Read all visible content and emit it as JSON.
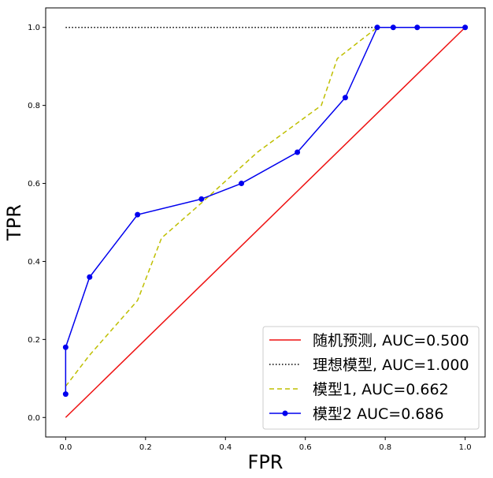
{
  "chart_data": {
    "type": "line",
    "xlabel": "FPR",
    "ylabel": "TPR",
    "xlim": [
      -0.05,
      1.05
    ],
    "ylim": [
      -0.05,
      1.05
    ],
    "xticks": [
      0.0,
      0.2,
      0.4,
      0.6,
      0.8,
      1.0
    ],
    "yticks": [
      0.0,
      0.2,
      0.4,
      0.6,
      0.8,
      1.0
    ],
    "tick_labels_x": [
      "0.0",
      "0.2",
      "0.4",
      "0.6",
      "0.8",
      "1.0"
    ],
    "tick_labels_y": [
      "0.0",
      "0.2",
      "0.4",
      "0.6",
      "0.8",
      "1.0"
    ],
    "grid": false,
    "legend_position": "lower-right",
    "series": [
      {
        "name": "随机预测, AUC=0.500",
        "color": "#ee1111",
        "style": "solid",
        "markers": false,
        "x": [
          0.0,
          1.0
        ],
        "y": [
          0.0,
          1.0
        ]
      },
      {
        "name": "理想模型, AUC=1.000",
        "color": "#000000",
        "style": "dotted",
        "markers": false,
        "x": [
          0.0,
          1.0
        ],
        "y": [
          1.0,
          1.0
        ]
      },
      {
        "name": "模型1, AUC=0.662",
        "color": "#bfbf00",
        "style": "dashed",
        "markers": false,
        "x": [
          0.0,
          0.06,
          0.18,
          0.24,
          0.34,
          0.48,
          0.64,
          0.68,
          0.78,
          0.82,
          0.88,
          1.0
        ],
        "y": [
          0.08,
          0.16,
          0.3,
          0.46,
          0.55,
          0.68,
          0.8,
          0.92,
          1.0,
          1.0,
          1.0,
          1.0
        ]
      },
      {
        "name": "模型2 AUC=0.686",
        "color": "#0000ee",
        "style": "solid",
        "markers": true,
        "x": [
          0.0,
          0.0,
          0.06,
          0.18,
          0.34,
          0.44,
          0.58,
          0.7,
          0.78,
          0.82,
          0.88,
          1.0
        ],
        "y": [
          0.06,
          0.18,
          0.36,
          0.52,
          0.56,
          0.6,
          0.68,
          0.82,
          1.0,
          1.0,
          1.0,
          1.0
        ]
      }
    ]
  }
}
